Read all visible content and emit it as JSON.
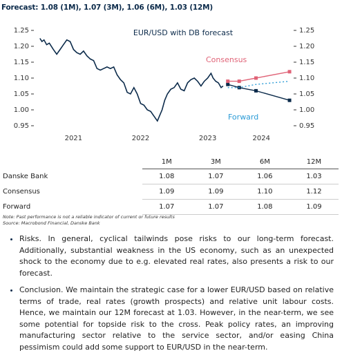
{
  "header": {
    "title": "Forecast: 1.08 (1M), 1.07 (3M), 1.06 (6M), 1.03 (12M)"
  },
  "chart_data": {
    "type": "line",
    "title": "EUR/USD with DB forecast",
    "xlim": [
      2020.94,
      2024.74
    ],
    "xticks": [
      {
        "value": 2021.5,
        "label": "2021"
      },
      {
        "value": 2022.5,
        "label": "2022"
      },
      {
        "value": 2023.5,
        "label": "2023"
      },
      {
        "value": 2024.3,
        "label": "2024"
      }
    ],
    "ylim": [
      0.95,
      1.25
    ],
    "yticks": [
      0.95,
      {
        "value": 1.0,
        "label": "1.00"
      },
      1.05,
      {
        "value": 1.1,
        "label": "1.10"
      },
      1.15,
      {
        "value": 1.2,
        "label": "1.20"
      },
      1.25
    ],
    "y2lim": [
      0.95,
      1.25
    ],
    "y2ticks": [
      0.95,
      {
        "value": 1.0,
        "label": "1.00"
      },
      1.05,
      {
        "value": 1.1,
        "label": "1.10"
      },
      1.15,
      {
        "value": 1.2,
        "label": "1.20"
      },
      1.25
    ],
    "series": [
      {
        "color": "#0b2a4a",
        "style": "solid",
        "x": [
          2021.0,
          2021.03,
          2021.06,
          2021.1,
          2021.14,
          2021.2,
          2021.25,
          2021.3,
          2021.35,
          2021.4,
          2021.45,
          2021.5,
          2021.55,
          2021.6,
          2021.65,
          2021.7,
          2021.75,
          2021.8,
          2021.85,
          2021.9,
          2021.95,
          2022.0,
          2022.05,
          2022.1,
          2022.15,
          2022.2,
          2022.25,
          2022.3,
          2022.35,
          2022.4,
          2022.45,
          2022.5,
          2022.55,
          2022.6,
          2022.65,
          2022.7,
          2022.75,
          2022.78,
          2022.82,
          2022.86,
          2022.9,
          2022.95,
          2023.0,
          2023.05,
          2023.1,
          2023.15,
          2023.2,
          2023.25,
          2023.3,
          2023.35,
          2023.4,
          2023.45,
          2023.5,
          2023.55,
          2023.58,
          2023.62,
          2023.66,
          2023.7,
          2023.73
        ],
        "values": [
          1.225,
          1.215,
          1.22,
          1.205,
          1.21,
          1.19,
          1.175,
          1.19,
          1.205,
          1.22,
          1.215,
          1.19,
          1.18,
          1.175,
          1.185,
          1.17,
          1.16,
          1.155,
          1.13,
          1.125,
          1.13,
          1.135,
          1.13,
          1.135,
          1.11,
          1.095,
          1.085,
          1.055,
          1.05,
          1.07,
          1.05,
          1.02,
          1.015,
          1.0,
          0.995,
          0.98,
          0.965,
          0.98,
          1.0,
          1.03,
          1.05,
          1.065,
          1.07,
          1.085,
          1.065,
          1.06,
          1.085,
          1.095,
          1.1,
          1.09,
          1.075,
          1.09,
          1.1,
          1.115,
          1.1,
          1.09,
          1.085,
          1.07,
          1.075
        ]
      },
      {
        "color": "#0b2a4a",
        "style": "marker",
        "x": [
          2023.8,
          2023.97,
          2024.22,
          2024.72
        ],
        "values": [
          1.08,
          1.07,
          1.06,
          1.03
        ]
      },
      {
        "name": "Consensus",
        "color": "#e06377",
        "style": "marker",
        "x": [
          2023.8,
          2023.97,
          2024.22,
          2024.72
        ],
        "values": [
          1.09,
          1.09,
          1.1,
          1.12
        ]
      },
      {
        "name": "Forward",
        "color": "#2b9bd6",
        "style": "dotted",
        "x": [
          2023.8,
          2023.97,
          2024.22,
          2024.72
        ],
        "values": [
          1.07,
          1.07,
          1.08,
          1.09
        ]
      }
    ]
  },
  "table": {
    "columns": [
      "1M",
      "3M",
      "6M",
      "12M"
    ],
    "rows": [
      [
        "Danske Bank",
        "1.08",
        "1.07",
        "1.06",
        "1.03"
      ],
      [
        "Consensus",
        "1.09",
        "1.09",
        "1.10",
        "1.12"
      ],
      [
        "Forward",
        "1.07",
        "1.07",
        "1.08",
        "1.09"
      ]
    ]
  },
  "notes": [
    "Note: Past performance is not a reliable indicator of current or future results",
    "Source: Macrobond Financial, Danske Bank"
  ],
  "bullets": [
    "Risks. In general, cyclical tailwinds pose risks to our long-term forecast. Additionally, substantial weakness in the US economy, such as an unexpected shock to the economy due to e.g. elevated real rates, also presents a risk to our forecast.",
    "Conclusion. We maintain the strategic case for a lower EUR/USD based on relative terms of trade, real rates (growth prospects) and relative unit labour costs. Hence, we maintain our 12M forecast at 1.03. However, in the near-term, we see some potential for topside risk to the cross. Peak policy rates, an improving manufacturing sector relative to the service sector, and/or easing China pessimism could add some support to EUR/USD in the near-term."
  ]
}
